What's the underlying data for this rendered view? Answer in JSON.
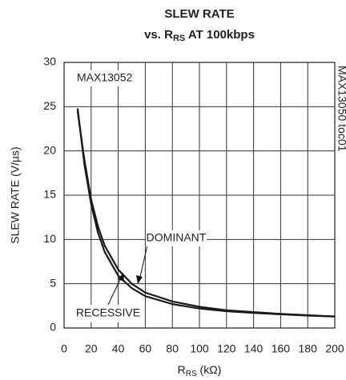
{
  "chart_data": {
    "type": "line",
    "title": "SLEW RATE",
    "subtitle": [
      "vs. R",
      "RS",
      " AT 100kbps"
    ],
    "xlabel": [
      "R",
      "RS",
      " (kΩ)"
    ],
    "ylabel": "SLEW RATE (V/µs)",
    "annotations": [
      "MAX13052",
      "DOMINANT",
      "RECESSIVE",
      "MAX13050 toc01"
    ],
    "x": [
      10,
      15,
      20,
      25,
      30,
      40,
      50,
      60,
      80,
      100,
      120,
      140,
      160,
      180,
      200
    ],
    "series": [
      {
        "name": "DOMINANT",
        "color": "#1a1a1a",
        "values": [
          24.5,
          19,
          14.5,
          11.5,
          9.3,
          6.6,
          5.0,
          4.0,
          3.0,
          2.4,
          2.0,
          1.8,
          1.6,
          1.45,
          1.3
        ]
      },
      {
        "name": "RECESSIVE",
        "color": "#1a1a1a",
        "values": [
          24.8,
          18.5,
          14,
          10.8,
          8.6,
          5.9,
          4.5,
          3.6,
          2.7,
          2.2,
          1.9,
          1.7,
          1.55,
          1.4,
          1.3
        ]
      }
    ],
    "xlim": [
      0,
      200
    ],
    "xticks": [
      0,
      20,
      40,
      60,
      80,
      100,
      120,
      140,
      160,
      180,
      200
    ],
    "ylim": [
      0,
      30
    ],
    "yticks": [
      0,
      5,
      10,
      15,
      20,
      25,
      30
    ],
    "grid": true
  }
}
